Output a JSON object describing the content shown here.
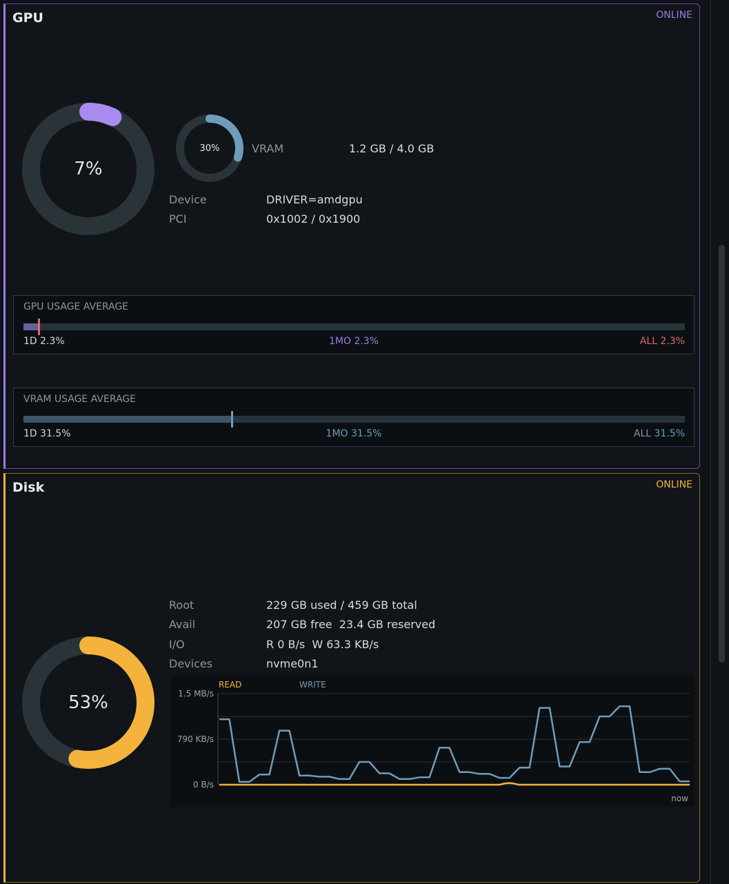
{
  "gpu": {
    "title": "GPU",
    "status": "ONLINE",
    "accent": "#9a7ce8",
    "usage_percent": 7,
    "usage_label": "7%",
    "vram_percent": 30,
    "vram_label": "30%",
    "vram_key": "VRAM",
    "vram_value": "1.2 GB / 4.0 GB",
    "rows": [
      {
        "key": "Device",
        "value": "DRIVER=amdgpu"
      },
      {
        "key": "PCI",
        "value": "0x1002 / 0x1900"
      }
    ],
    "gpu_avg": {
      "title": "GPU USAGE AVERAGE",
      "fill_percent": 2.3,
      "d1": "1D 2.3%",
      "mo": "1MO 2.3%",
      "all": "ALL 2.3%"
    },
    "vram_avg": {
      "title": "VRAM USAGE AVERAGE",
      "fill_percent": 31.5,
      "d1": "1D 31.5%",
      "mo": "1MO 31.5%",
      "all": "ALL 31.5%"
    }
  },
  "disk": {
    "title": "Disk",
    "status": "ONLINE",
    "accent": "#f3b33d",
    "usage_percent": 53,
    "usage_label": "53%",
    "rows": [
      {
        "key": "Root",
        "value": "229 GB used / 459 GB total"
      },
      {
        "key": "Avail",
        "value": "207 GB free  23.4 GB reserved"
      },
      {
        "key": "I/O",
        "value": "R 0 B/s  W 63.3 KB/s"
      },
      {
        "key": "Devices",
        "value": "nvme0n1"
      }
    ],
    "chart_labels": {
      "read": "READ",
      "write": "WRITE",
      "y_top": "1.5 MB/s",
      "y_mid": "790 KB/s",
      "y_bottom": "0 B/s",
      "x_now": "now"
    }
  },
  "chart_data": {
    "type": "line",
    "ylabel": "",
    "ylim": [
      0,
      1.6
    ],
    "y_ticks": [
      "0 B/s",
      "790 KB/s",
      "1.5 MB/s"
    ],
    "x_label_right": "now",
    "series": [
      {
        "name": "READ",
        "color": "#f3b33d",
        "values": [
          0,
          0,
          0,
          0,
          0,
          0,
          0,
          0,
          0,
          0,
          0,
          0,
          0,
          0,
          0,
          0,
          0,
          0,
          0,
          0,
          0,
          0,
          0,
          0,
          0,
          0,
          0,
          0,
          0,
          0,
          0,
          0,
          0,
          0,
          0,
          0,
          0,
          0,
          0,
          0,
          0,
          0,
          0,
          0,
          0,
          0,
          0,
          0,
          0,
          0,
          0,
          0,
          0,
          0,
          0,
          0,
          0,
          0,
          0,
          0,
          0.02,
          0.03,
          0.02,
          0,
          0,
          0,
          0,
          0,
          0,
          0,
          0,
          0,
          0,
          0,
          0,
          0,
          0,
          0,
          0,
          0,
          0,
          0,
          0,
          0,
          0,
          0,
          0,
          0,
          0,
          0,
          0,
          0,
          0,
          0,
          0,
          0,
          0,
          0,
          0,
          0
        ]
      },
      {
        "name": "WRITE",
        "color": "#6f9cba",
        "values": [
          1.15,
          1.15,
          0.05,
          0.05,
          0.18,
          0.18,
          0.95,
          0.95,
          0.16,
          0.16,
          0.14,
          0.14,
          0.1,
          0.1,
          0.4,
          0.4,
          0.2,
          0.2,
          0.1,
          0.1,
          0.13,
          0.13,
          0.65,
          0.65,
          0.22,
          0.22,
          0.19,
          0.19,
          0.12,
          0.12,
          0.3,
          0.3,
          1.35,
          1.35,
          0.32,
          0.32,
          0.75,
          0.75,
          1.2,
          1.2,
          1.38,
          1.38,
          0.22,
          0.22,
          0.28,
          0.28,
          0.06,
          0.06
        ]
      }
    ]
  }
}
